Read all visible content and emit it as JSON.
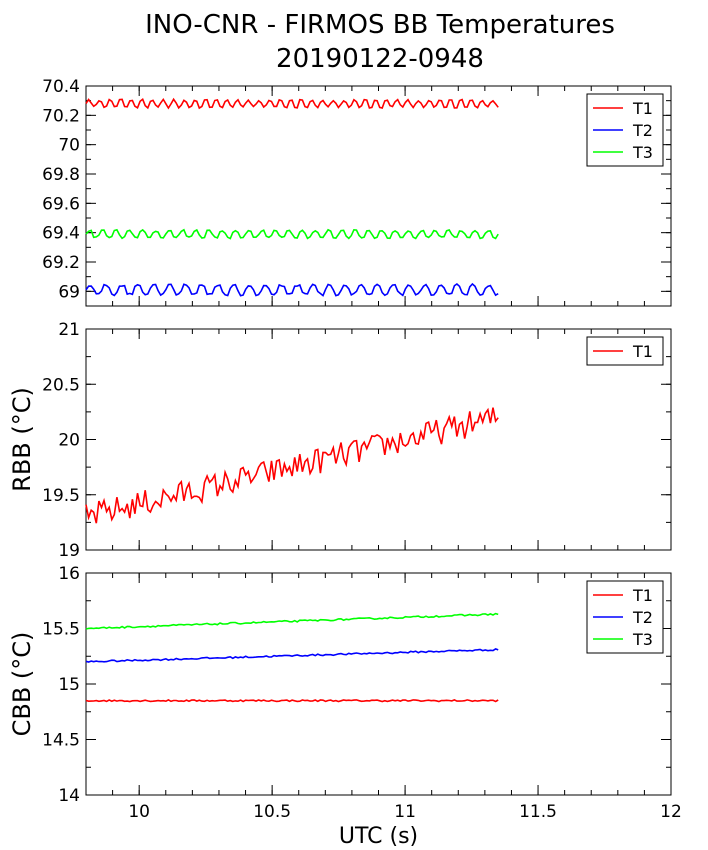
{
  "title_line1": "INO-CNR - FIRMOS BB Temperatures",
  "title_line2": "20190122-0948",
  "chart_data": [
    {
      "type": "line",
      "title": "INO-CNR - FIRMOS BB Temperatures 20190122-0948",
      "ylabel": "",
      "xlim": [
        9.8,
        12
      ],
      "ylim": [
        68.9,
        70.4
      ],
      "yticks": [
        "69",
        "69.2",
        "69.4",
        "69.6",
        "69.8",
        "70",
        "70.2",
        "70.4"
      ],
      "ytick_values": [
        69,
        69.2,
        69.4,
        69.6,
        69.8,
        70,
        70.2,
        70.4
      ],
      "legend_position": "top-right",
      "series": [
        {
          "name": "T1",
          "color": "#ff0000",
          "mean": 70.28,
          "amp": 0.03,
          "period": 0.04,
          "x_start": 9.8,
          "x_end": 11.35
        },
        {
          "name": "T2",
          "color": "#0000ff",
          "mean": 69.01,
          "amp": 0.04,
          "period": 0.06,
          "x_start": 9.8,
          "x_end": 11.35
        },
        {
          "name": "T3",
          "color": "#00ff00",
          "mean": 69.39,
          "amp": 0.03,
          "period": 0.05,
          "x_start": 9.8,
          "x_end": 11.35
        }
      ]
    },
    {
      "type": "line",
      "ylabel": "RBB (°C)",
      "xlim": [
        9.8,
        12
      ],
      "ylim": [
        19,
        21
      ],
      "yticks": [
        "19",
        "19.5",
        "20",
        "20.5",
        "21"
      ],
      "ytick_values": [
        19,
        19.5,
        20,
        20.5,
        21
      ],
      "legend_position": "top-right",
      "series": [
        {
          "name": "T1",
          "color": "#ff0000",
          "x_start": 9.8,
          "x_end": 11.35,
          "trend_start": 19.3,
          "trend_end": 20.2,
          "noise": 0.12
        }
      ]
    },
    {
      "type": "line",
      "ylabel": "CBB (°C)",
      "xlabel": "UTC (s)",
      "xlim": [
        9.8,
        12
      ],
      "xticks": [
        "10",
        "10.5",
        "11",
        "11.5",
        "12"
      ],
      "xtick_values": [
        10,
        10.5,
        11,
        11.5,
        12
      ],
      "ylim": [
        14,
        16
      ],
      "yticks": [
        "14",
        "14.5",
        "15",
        "15.5",
        "16"
      ],
      "ytick_values": [
        14,
        14.5,
        15,
        15.5,
        16
      ],
      "legend_position": "top-right",
      "series": [
        {
          "name": "T1",
          "color": "#ff0000",
          "start": 14.85,
          "end": 14.85,
          "x_start": 9.8,
          "x_end": 11.35
        },
        {
          "name": "T2",
          "color": "#0000ff",
          "start": 15.2,
          "end": 15.31,
          "x_start": 9.8,
          "x_end": 11.35
        },
        {
          "name": "T3",
          "color": "#00ff00",
          "start": 15.5,
          "end": 15.63,
          "x_start": 9.8,
          "x_end": 11.35
        }
      ]
    }
  ]
}
